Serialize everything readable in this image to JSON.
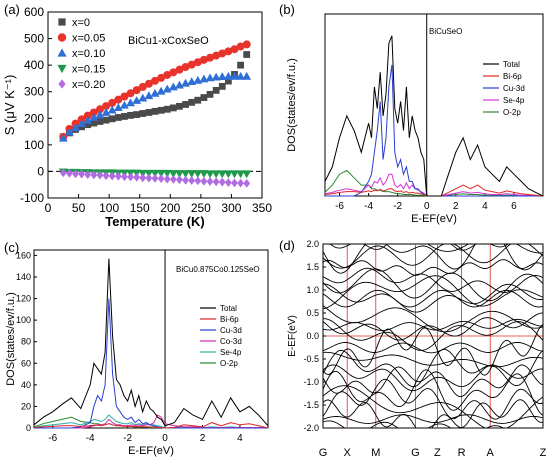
{
  "chart_data": [
    {
      "type": "scatter",
      "panel_label": "(a)",
      "annotation": "BiCu1-xCoxSeO",
      "xlabel": "Temperature (K)",
      "ylabel": "S (μV K⁻¹)",
      "xlim": [
        0,
        350
      ],
      "ylim": [
        -100,
        600
      ],
      "xticks": [
        "0",
        "50",
        "100",
        "150",
        "200",
        "250",
        "300",
        "350"
      ],
      "yticks": [
        "-100",
        "0",
        "100",
        "200",
        "300",
        "400",
        "500",
        "600"
      ],
      "zero_line": "dashed",
      "legend_position": "top-left",
      "x": [
        25,
        35,
        45,
        55,
        65,
        75,
        85,
        95,
        105,
        115,
        125,
        135,
        145,
        155,
        165,
        175,
        185,
        195,
        205,
        215,
        225,
        235,
        245,
        255,
        265,
        275,
        285,
        295,
        305,
        315,
        325
      ],
      "series": [
        {
          "name": "x=0",
          "color": "#4a4a4a",
          "marker": "square",
          "values": [
            130,
            145,
            158,
            168,
            176,
            182,
            188,
            193,
            198,
            203,
            207,
            211,
            214,
            218,
            222,
            226,
            230,
            234,
            239,
            245,
            252,
            260,
            268,
            278,
            290,
            305,
            320,
            340,
            365,
            400,
            440
          ]
        },
        {
          "name": "x=0.05",
          "color": "#e8322c",
          "marker": "circle",
          "values": [
            130,
            160,
            180,
            196,
            210,
            222,
            234,
            246,
            258,
            270,
            282,
            294,
            306,
            318,
            330,
            341,
            352,
            363,
            373,
            383,
            393,
            402,
            411,
            420,
            428,
            436,
            444,
            452,
            460,
            470,
            478
          ]
        },
        {
          "name": "x=0.10",
          "color": "#2f6fd6",
          "marker": "triangle-up",
          "values": [
            125,
            148,
            165,
            180,
            192,
            203,
            213,
            222,
            231,
            240,
            249,
            258,
            267,
            276,
            285,
            294,
            302,
            310,
            318,
            325,
            332,
            338,
            343,
            348,
            352,
            355,
            357,
            358,
            358,
            358,
            358
          ]
        },
        {
          "name": "x=0.15",
          "color": "#1f9a4b",
          "marker": "triangle-down",
          "values": [
            -2,
            -3,
            -3,
            -4,
            -4,
            -5,
            -5,
            -5,
            -5,
            -6,
            -6,
            -6,
            -6,
            -7,
            -7,
            -7,
            -7,
            -7,
            -8,
            -8,
            -8,
            -8,
            -8,
            -8,
            -9,
            -9,
            -9,
            -9,
            -9,
            -9,
            -9
          ]
        },
        {
          "name": "x=0.20",
          "color": "#b06ce0",
          "marker": "diamond",
          "values": [
            -5,
            -7,
            -9,
            -10,
            -12,
            -13,
            -14,
            -16,
            -17,
            -18,
            -20,
            -21,
            -22,
            -24,
            -25,
            -26,
            -27,
            -29,
            -30,
            -31,
            -33,
            -34,
            -35,
            -37,
            -38,
            -39,
            -40,
            -42,
            -43,
            -44,
            -45
          ]
        }
      ]
    },
    {
      "type": "line",
      "panel_label": "(b)",
      "annotation": "BiCuSeO",
      "xlabel": "E-EF(eV)",
      "ylabel": "DOS(states/ev/f.u.)",
      "xlim": [
        -7,
        8
      ],
      "ylim": [
        0,
        25
      ],
      "xticks": [
        "-6",
        "-4",
        "-2",
        "0",
        "2",
        "4",
        "6"
      ],
      "fermi_level": 0,
      "legend_position": "top-right",
      "x": [
        -7,
        -6.5,
        -6,
        -5.5,
        -5,
        -4.5,
        -4,
        -3.8,
        -3.6,
        -3.4,
        -3.2,
        -3,
        -2.8,
        -2.6,
        -2.4,
        -2.2,
        -2,
        -1.8,
        -1.6,
        -1.4,
        -1.2,
        -1,
        -0.8,
        -0.6,
        -0.4,
        -0.2,
        0,
        0.5,
        1,
        1.5,
        2,
        2.5,
        3,
        3.5,
        4,
        4.5,
        5,
        5.5,
        6,
        6.5,
        7,
        7.5,
        8
      ],
      "series": [
        {
          "name": "Total",
          "color": "#000000",
          "values": [
            2,
            4,
            8,
            11,
            9,
            6,
            10,
            8,
            15,
            12,
            17,
            11,
            14,
            21,
            22,
            12,
            10,
            13,
            9,
            15,
            8,
            11,
            9,
            8,
            6,
            5,
            0,
            0,
            0,
            3,
            6,
            8,
            5,
            7,
            4,
            3,
            2,
            4,
            3,
            2,
            1,
            0.5,
            0
          ]
        },
        {
          "name": "Bi-6p",
          "color": "#e0242a",
          "values": [
            0.2,
            0.3,
            0.5,
            0.6,
            0.6,
            0.5,
            0.7,
            0.6,
            0.8,
            0.7,
            0.9,
            0.7,
            0.8,
            1.0,
            1.0,
            0.7,
            0.6,
            0.7,
            0.5,
            0.6,
            0.4,
            0.5,
            0.4,
            0.4,
            0.3,
            0.2,
            0,
            0,
            0,
            0.5,
            1.0,
            1.5,
            1.0,
            1.5,
            0.8,
            0.6,
            0.4,
            0.7,
            0.5,
            0.3,
            0.2,
            0.1,
            0
          ]
        },
        {
          "name": "Cu-3d",
          "color": "#2a3fd0",
          "values": [
            0,
            0,
            0,
            0,
            0,
            0.5,
            2,
            3,
            6,
            9,
            13,
            5,
            8,
            15,
            18,
            6,
            4,
            5,
            3,
            4,
            2,
            2,
            1,
            1,
            0.5,
            0.3,
            0,
            0,
            0,
            0,
            0,
            0,
            0,
            0,
            0,
            0,
            0,
            0,
            0,
            0,
            0,
            0,
            0
          ]
        },
        {
          "name": "Se-4p",
          "color": "#d436d4",
          "values": [
            0.3,
            0.5,
            0.8,
            1.0,
            0.8,
            0.6,
            1.5,
            1.2,
            2.0,
            1.8,
            2.5,
            1.5,
            2.0,
            3.0,
            3.0,
            1.5,
            1.2,
            1.6,
            1.0,
            1.8,
            1.0,
            1.5,
            1.0,
            0.8,
            0.6,
            0.4,
            0,
            0,
            0,
            0.2,
            0.4,
            0.6,
            0.4,
            0.5,
            0.3,
            0.2,
            0.2,
            0.3,
            0.2,
            0.1,
            0.1,
            0,
            0
          ]
        },
        {
          "name": "O-2p",
          "color": "#2b8a2b",
          "values": [
            0.5,
            1.5,
            3.0,
            3.5,
            2.5,
            1.5,
            1.5,
            1.0,
            1.0,
            0.8,
            0.8,
            0.6,
            0.6,
            0.6,
            0.5,
            0.4,
            0.3,
            0.3,
            0.2,
            0.2,
            0.2,
            0.2,
            0.1,
            0.1,
            0.1,
            0.1,
            0,
            0,
            0,
            0.1,
            0.2,
            0.3,
            0.2,
            0.2,
            0.1,
            0.1,
            0.1,
            0.1,
            0.1,
            0,
            0,
            0,
            0
          ]
        }
      ]
    },
    {
      "type": "line",
      "panel_label": "(c)",
      "annotation": "BiCu0.875Co0.125SeO",
      "xlabel": "E-EF(eV)",
      "ylabel": "DOS(states/ev/f.u.)",
      "xlim": [
        -7,
        5.5
      ],
      "ylim": [
        0,
        165
      ],
      "xticks": [
        "-6",
        "-4",
        "-2",
        "0",
        "2",
        "4"
      ],
      "yticks": [
        "0",
        "20",
        "40",
        "60",
        "80",
        "100",
        "120",
        "140",
        "160"
      ],
      "fermi_level": 0,
      "legend_position": "right",
      "x": [
        -7,
        -6.5,
        -6,
        -5.5,
        -5,
        -4.5,
        -4,
        -3.8,
        -3.6,
        -3.4,
        -3.2,
        -3.0,
        -2.8,
        -2.6,
        -2.4,
        -2.2,
        -2.0,
        -1.8,
        -1.6,
        -1.4,
        -1.2,
        -1.0,
        -0.8,
        -0.6,
        -0.4,
        -0.2,
        0,
        0.5,
        1.0,
        1.5,
        2.0,
        2.5,
        3.0,
        3.5,
        4.0,
        4.5,
        5.0,
        5.5
      ],
      "series": [
        {
          "name": "Total",
          "color": "#000000",
          "values": [
            3,
            10,
            15,
            22,
            28,
            18,
            40,
            60,
            55,
            50,
            70,
            157,
            85,
            45,
            40,
            30,
            25,
            35,
            20,
            30,
            15,
            25,
            18,
            15,
            10,
            8,
            2,
            5,
            18,
            12,
            8,
            25,
            10,
            28,
            15,
            20,
            12,
            2
          ]
        },
        {
          "name": "Bi-6p",
          "color": "#e0242a",
          "values": [
            0.5,
            1,
            1.5,
            2,
            2,
            1.5,
            2,
            2.5,
            2.5,
            2,
            3,
            4,
            3,
            2,
            2,
            1.5,
            1.5,
            1.5,
            1,
            1.5,
            1,
            1,
            1,
            1,
            0.5,
            0.5,
            0,
            0.5,
            3,
            2,
            1,
            5,
            2,
            5,
            3,
            4,
            2,
            0
          ]
        },
        {
          "name": "Cu-3d",
          "color": "#2a3fd0",
          "values": [
            0,
            0,
            0,
            0,
            0,
            1,
            5,
            20,
            30,
            25,
            40,
            120,
            50,
            20,
            15,
            10,
            8,
            10,
            5,
            8,
            4,
            5,
            3,
            2,
            1,
            0.5,
            0,
            0,
            0,
            0,
            0,
            0,
            0,
            0,
            0,
            0,
            0,
            0
          ]
        },
        {
          "name": "Co-3d",
          "color": "#d42ba8",
          "values": [
            0,
            0,
            0,
            0,
            0,
            0,
            1,
            2,
            3,
            3,
            4,
            8,
            5,
            3,
            3,
            2,
            2,
            3,
            2,
            3,
            2,
            3,
            3,
            5,
            12,
            10,
            4,
            2,
            1,
            1,
            0.5,
            0.5,
            0.5,
            0.5,
            0.5,
            0.5,
            0.5,
            0
          ]
        },
        {
          "name": "Se-4p",
          "color": "#2ab0a8",
          "values": [
            0.5,
            2,
            3,
            4,
            5,
            3,
            6,
            8,
            7,
            6,
            8,
            12,
            9,
            6,
            5,
            4,
            4,
            5,
            3,
            4,
            3,
            4,
            3,
            3,
            2,
            1.5,
            0,
            0.5,
            1,
            1,
            0.5,
            1,
            0.5,
            1,
            0.5,
            0.5,
            0.5,
            0
          ]
        },
        {
          "name": "O-2p",
          "color": "#2b8a2b",
          "values": [
            1,
            4,
            6,
            8,
            10,
            6,
            5,
            4,
            4,
            3,
            3,
            4,
            3,
            2,
            2,
            2,
            1.5,
            1.5,
            1,
            1,
            1,
            1,
            0.5,
            0.5,
            0.5,
            0.5,
            0,
            0.2,
            0.5,
            0.5,
            0.3,
            0.6,
            0.3,
            0.6,
            0.3,
            0.4,
            0.3,
            0
          ]
        }
      ]
    },
    {
      "type": "line",
      "panel_label": "(d)",
      "ylabel": "E-EF(eV)",
      "ylim": [
        -2.0,
        2.0
      ],
      "yticks": [
        "2.0",
        "1.5",
        "1.0",
        "0.5",
        "0.0",
        "-0.5",
        "-1.0",
        "-1.5",
        "-2.0"
      ],
      "kpoints": [
        "G",
        "X",
        "M",
        "G",
        "Z",
        "R",
        "A",
        "Z"
      ],
      "kpoint_positions": [
        0,
        0.11,
        0.24,
        0.42,
        0.52,
        0.63,
        0.76,
        1.0
      ],
      "fermi_level": 0,
      "band_color": "#000000",
      "vline_color": "#d9302a"
    }
  ]
}
